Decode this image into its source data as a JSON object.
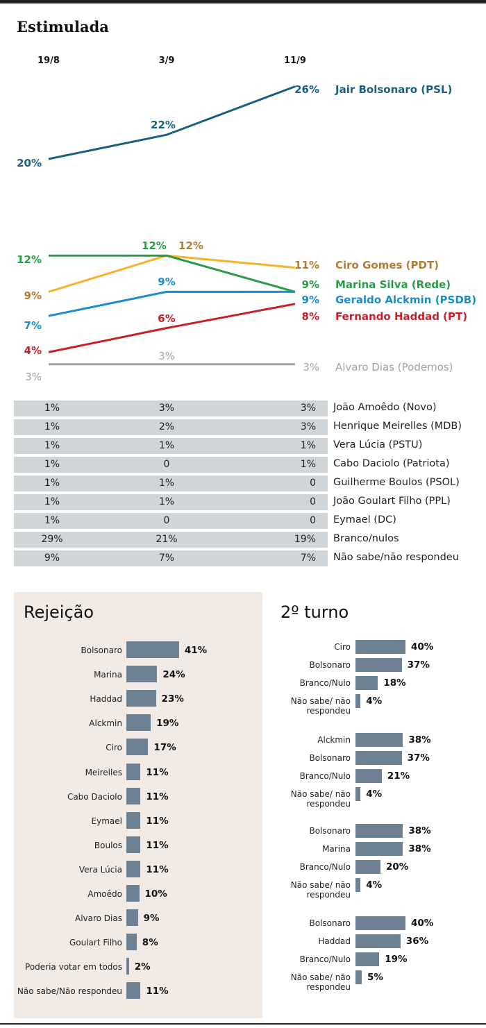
{
  "title": "Estimulada",
  "chart_data": [
    {
      "type": "line",
      "title": "Estimulada",
      "x": [
        "19/8",
        "3/9",
        "11/9"
      ],
      "ylabel": "%",
      "series": [
        {
          "name": "Jair Bolsonaro (PSL)",
          "values": [
            20,
            22,
            26
          ],
          "color": "#1b5f80",
          "label_color": "#1b5f80"
        },
        {
          "name": "Ciro Gomes (PDT)",
          "values": [
            9,
            12,
            11
          ],
          "color": "#f6b32a",
          "label_color": "#b37d35"
        },
        {
          "name": "Marina Silva (Rede)",
          "values": [
            12,
            12,
            9
          ],
          "color": "#2a9a48",
          "label_color": "#2a9a48"
        },
        {
          "name": "Geraldo Alckmin (PSDB)",
          "values": [
            7,
            9,
            9
          ],
          "color": "#1a8dcf",
          "label_color": "#1a8dcf"
        },
        {
          "name": "Fernando Haddad (PT)",
          "values": [
            4,
            6,
            8
          ],
          "color": "#c8202a",
          "label_color": "#c8202a"
        },
        {
          "name": "Alvaro Dias (Podemos)",
          "values": [
            3,
            3,
            3
          ],
          "color": "#a3a3a3",
          "label_color": "#a3a3a3"
        }
      ]
    },
    {
      "type": "table",
      "columns": [
        "19/8",
        "3/9",
        "11/9"
      ],
      "rows": [
        {
          "name": "João Amoêdo (Novo)",
          "values": [
            "1%",
            "3%",
            "3%"
          ]
        },
        {
          "name": "Henrique Meirelles (MDB)",
          "values": [
            "1%",
            "2%",
            "3%"
          ]
        },
        {
          "name": "Vera Lúcia (PSTU)",
          "values": [
            "1%",
            "1%",
            "1%"
          ]
        },
        {
          "name": "Cabo Daciolo (Patriota)",
          "values": [
            "1%",
            "0",
            "1%"
          ]
        },
        {
          "name": "Guilherme Boulos (PSOL)",
          "values": [
            "1%",
            "1%",
            "0"
          ]
        },
        {
          "name": "João Goulart Filho (PPL)",
          "values": [
            "1%",
            "1%",
            "0"
          ]
        },
        {
          "name": "Eymael (DC)",
          "values": [
            "1%",
            "0",
            "0"
          ]
        },
        {
          "name": "Branco/nulos",
          "values": [
            "29%",
            "21%",
            "19%"
          ]
        },
        {
          "name": "Não sabe/não respondeu",
          "values": [
            "9%",
            "7%",
            "7%"
          ]
        }
      ]
    },
    {
      "type": "bar",
      "title": "Rejeição",
      "bar_color": "#6e8193",
      "categories": [
        "Bolsonaro",
        "Marina",
        "Haddad",
        "Alckmin",
        "Ciro",
        "Meirelles",
        "Cabo Daciolo",
        "Eymael",
        "Boulos",
        "Vera Lúcia",
        "Amoêdo",
        "Alvaro Dias",
        "Goulart Filho",
        "Poderia votar em todos",
        "Não sabe/Não respondeu"
      ],
      "values": [
        41,
        24,
        23,
        19,
        17,
        11,
        11,
        11,
        11,
        11,
        10,
        9,
        8,
        2,
        11
      ]
    },
    {
      "type": "bar",
      "title": "2º turno",
      "bar_color": "#6e8193",
      "groups": [
        {
          "categories": [
            "Ciro",
            "Bolsonaro",
            "Branco/Nulo",
            "Não sabe/ não respondeu"
          ],
          "values": [
            40,
            37,
            18,
            4
          ]
        },
        {
          "categories": [
            "Alckmin",
            "Bolsonaro",
            "Branco/Nulo",
            "Não sabe/ não respondeu"
          ],
          "values": [
            38,
            37,
            21,
            4
          ]
        },
        {
          "categories": [
            "Bolsonaro",
            "Marina",
            "Branco/Nulo",
            "Não sabe/ não respondeu"
          ],
          "values": [
            38,
            38,
            20,
            4
          ]
        },
        {
          "categories": [
            "Bolsonaro",
            "Haddad",
            "Branco/Nulo",
            "Não sabe/ não respondeu"
          ],
          "values": [
            40,
            36,
            19,
            5
          ]
        }
      ]
    }
  ]
}
